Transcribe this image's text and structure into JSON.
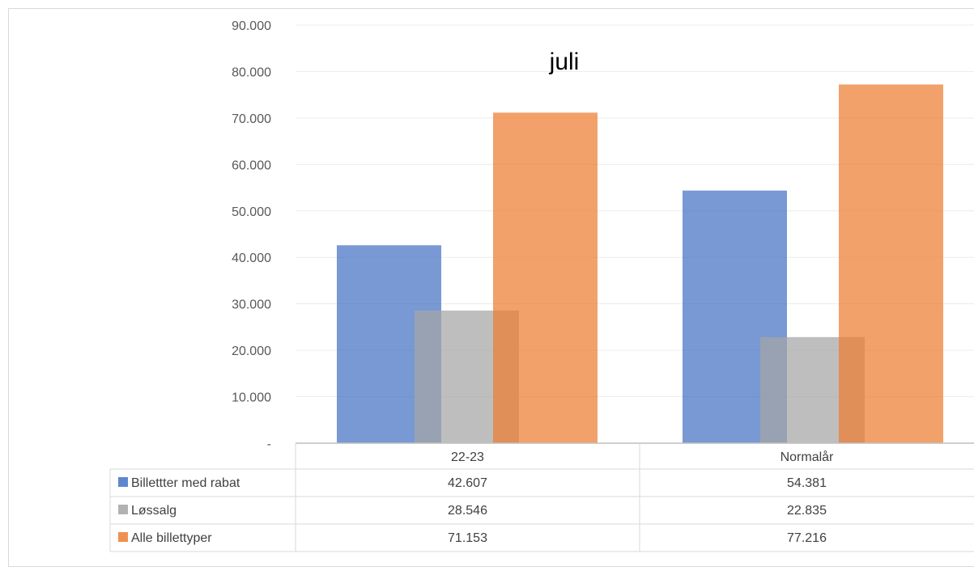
{
  "chart_data": {
    "type": "bar",
    "title": "juli",
    "categories": [
      "22-23",
      "Normalår"
    ],
    "series": [
      {
        "name": "Billettter med rabat",
        "values": [
          42607,
          54381
        ],
        "display": [
          "42.607",
          "54.381"
        ],
        "color": "#4472c4"
      },
      {
        "name": "Løssalg",
        "values": [
          28546,
          22835
        ],
        "display": [
          "28.546",
          "22.835"
        ],
        "color": "#a5a5a5"
      },
      {
        "name": "Alle billettyper",
        "values": [
          71153,
          77216
        ],
        "display": [
          "71.153",
          "77.216"
        ],
        "color": "#ed7d31"
      }
    ],
    "ylim": [
      0,
      90000
    ],
    "yticks": [
      {
        "value": 0,
        "label": "-"
      },
      {
        "value": 10000,
        "label": "10.000"
      },
      {
        "value": 20000,
        "label": "20.000"
      },
      {
        "value": 30000,
        "label": "30.000"
      },
      {
        "value": 40000,
        "label": "40.000"
      },
      {
        "value": 50000,
        "label": "50.000"
      },
      {
        "value": 60000,
        "label": "60.000"
      },
      {
        "value": 70000,
        "label": "70.000"
      },
      {
        "value": 80000,
        "label": "80.000"
      },
      {
        "value": 90000,
        "label": "90.000"
      }
    ],
    "grid": true,
    "legend": "data-table",
    "overlap_bars": true
  }
}
